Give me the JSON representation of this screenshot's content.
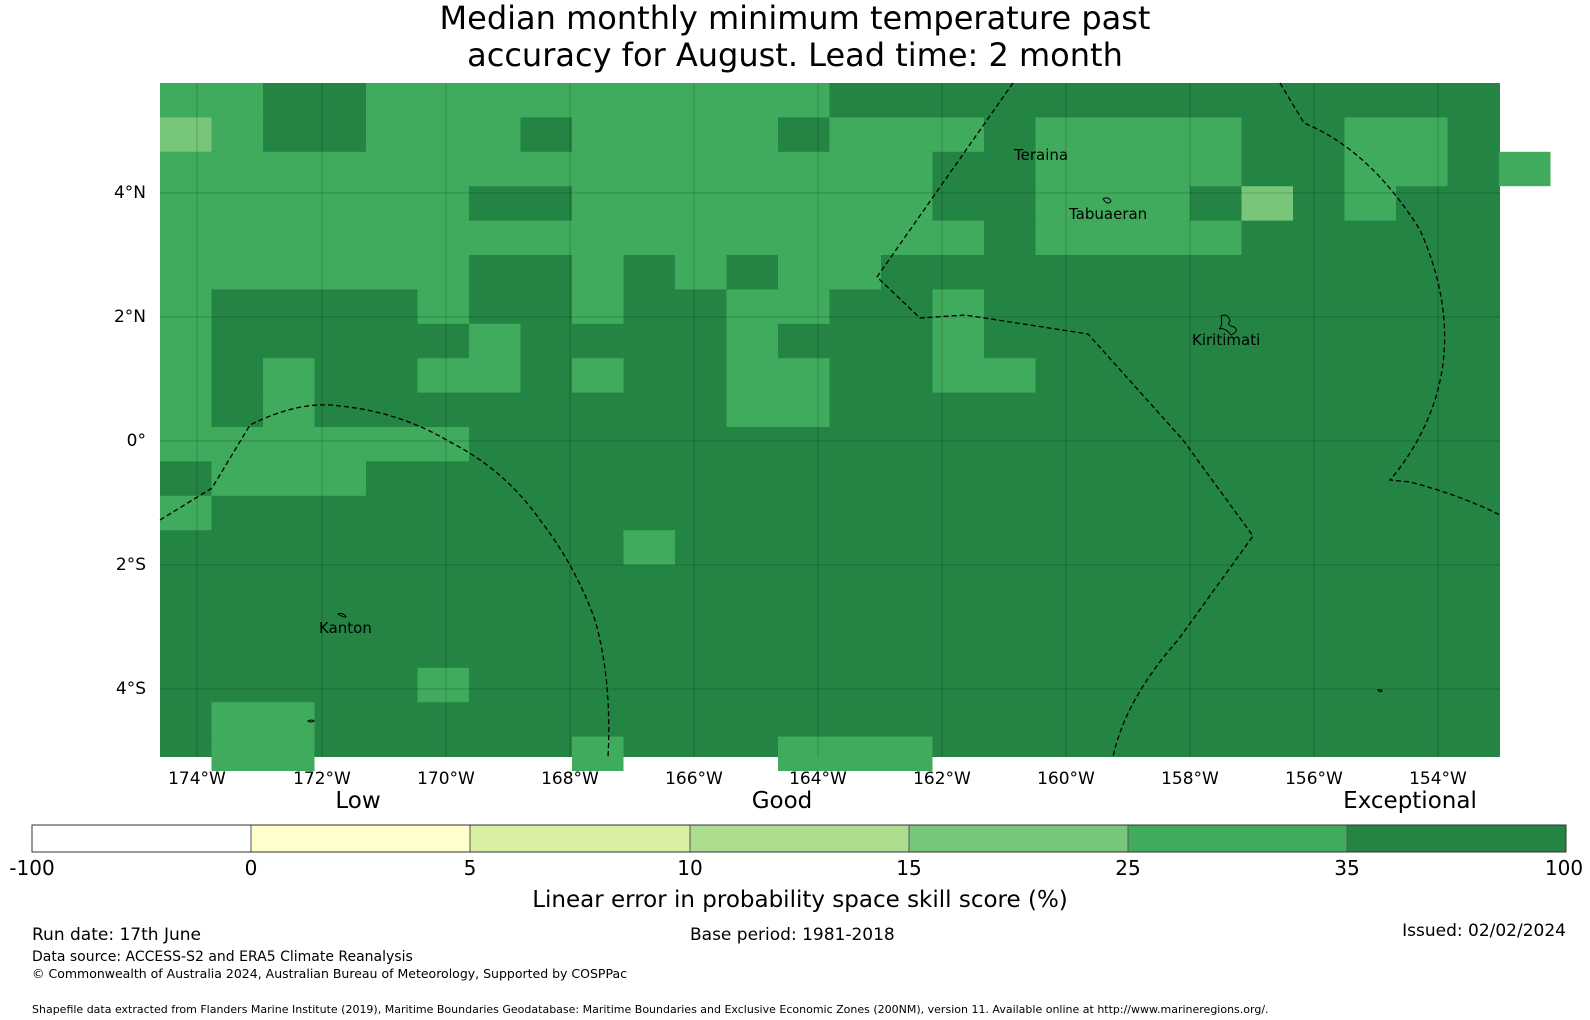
{
  "title": {
    "line1": "Median monthly minimum temperature past",
    "line2": "accuracy for August. Lead time: 2 month"
  },
  "map": {
    "longitude_labels": [
      "174°W",
      "172°W",
      "170°W",
      "168°W",
      "166°W",
      "164°W",
      "162°W",
      "160°W",
      "158°W",
      "156°W",
      "154°W"
    ],
    "latitude_labels": [
      "4°N",
      "2°N",
      "0°",
      "2°S",
      "4°S"
    ],
    "place_labels": [
      "Teraina",
      "Tabuaeran",
      "Kiritimati",
      "Kanton"
    ]
  },
  "legend": {
    "category_labels": [
      "Low",
      "Good",
      "Exceptional"
    ],
    "tick_labels": [
      "-100",
      "0",
      "5",
      "10",
      "15",
      "25",
      "35",
      "100"
    ],
    "colors": [
      "#ffffff",
      "#ffffcc",
      "#d9f0a3",
      "#addd8e",
      "#78c679",
      "#41ab5d",
      "#238443"
    ],
    "axis_title": "Linear error in probability space skill score (%)"
  },
  "footer": {
    "run_date": "Run date: 17th June",
    "base_period": "Base period: 1981-2018",
    "issued": "Issued: 02/02/2024",
    "data_source": "Data source: ACCESS-S2 and ERA5 Climate Reanalysis",
    "copyright": "© Commonwealth of Australia 2024, Australian Bureau of Meteorology, Supported by COSPPac",
    "shapefile": "Shapefile data extracted from Flanders Marine Institute (2019), Maritime Boundaries Geodatabase: Maritime Boundaries and Exclusive Economic Zones (200NM), version 11. Available online at http://www.marineregions.org/."
  }
}
